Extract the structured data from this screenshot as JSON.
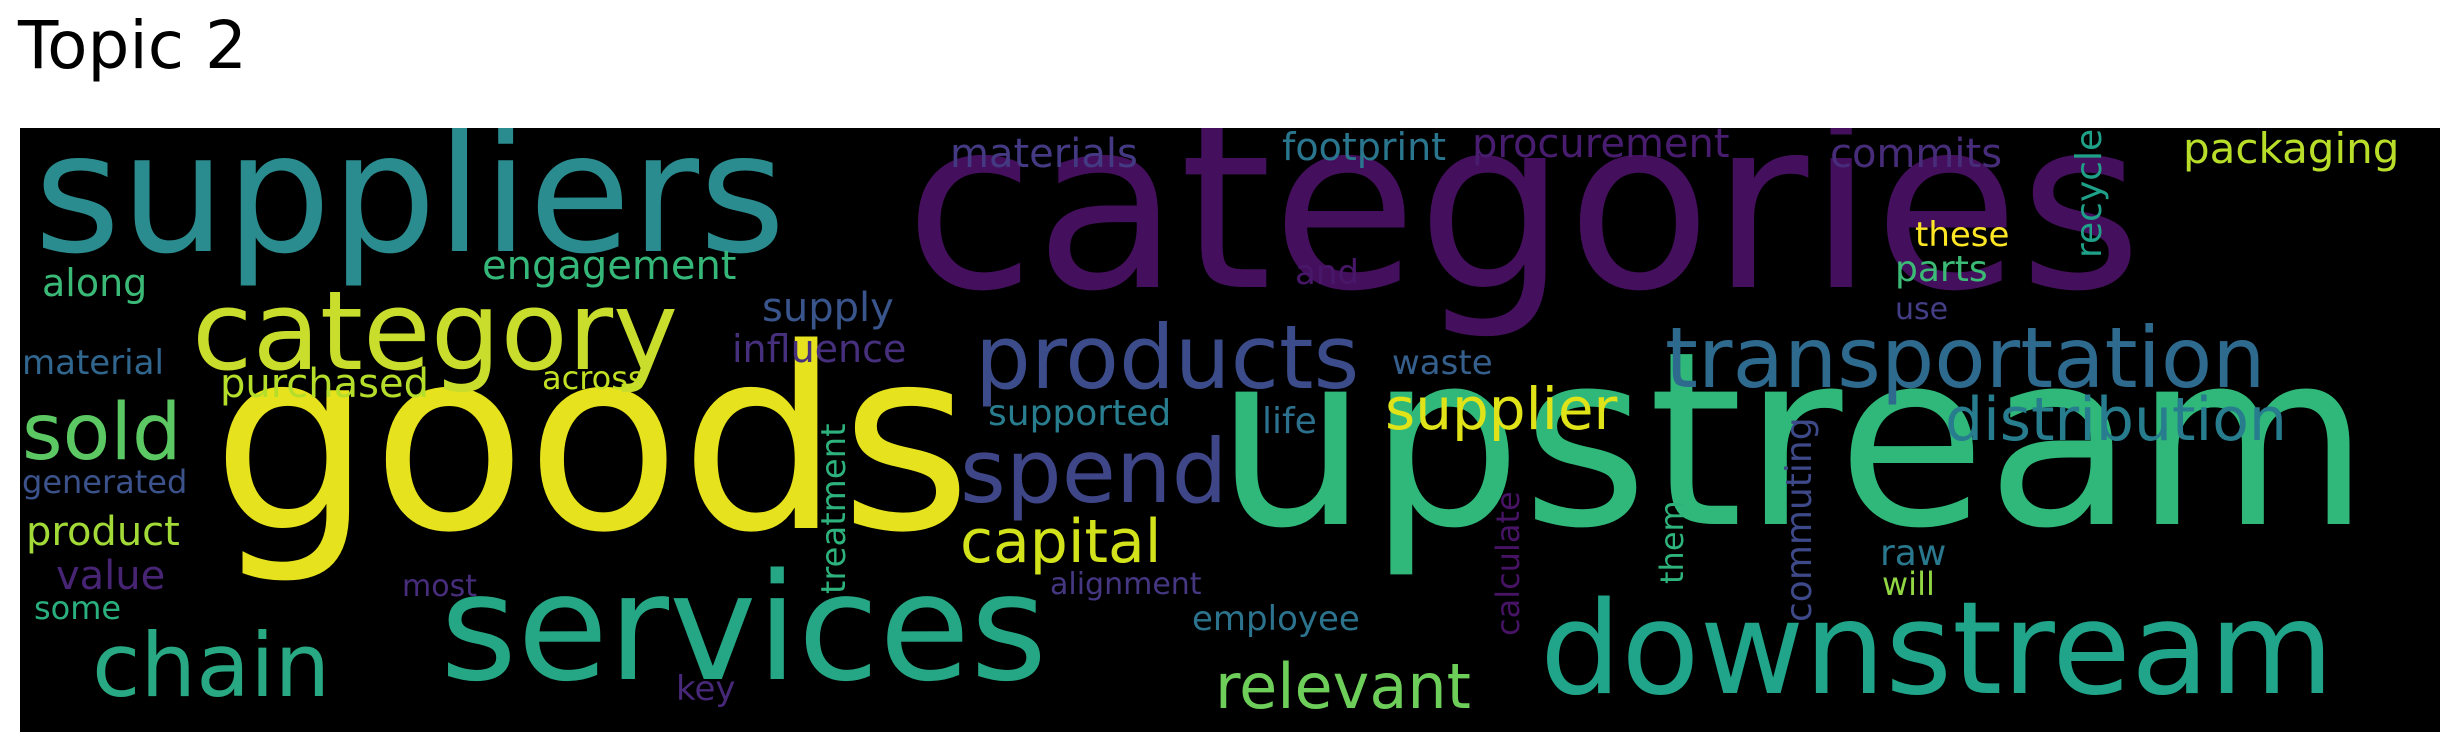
{
  "title": "Topic 2",
  "words": [
    {
      "id": "categories",
      "text": "categories",
      "color": "#440f5c"
    },
    {
      "id": "goods",
      "text": "goods",
      "color": "#e6e21d"
    },
    {
      "id": "upstream",
      "text": "upstream",
      "color": "#2fb87a"
    },
    {
      "id": "suppliers",
      "text": "suppliers",
      "color": "#2a8c8f"
    },
    {
      "id": "services",
      "text": "services",
      "color": "#25a684"
    },
    {
      "id": "downstream",
      "text": "downstream",
      "color": "#20a58a"
    },
    {
      "id": "category",
      "text": "category",
      "color": "#c9dd2d"
    },
    {
      "id": "products",
      "text": "products",
      "color": "#3c4c8a"
    },
    {
      "id": "transportation",
      "text": "transportation",
      "color": "#2e6a8e"
    },
    {
      "id": "spend",
      "text": "spend",
      "color": "#3f4688"
    },
    {
      "id": "distribution",
      "text": "distribution",
      "color": "#277c8e"
    },
    {
      "id": "chain",
      "text": "chain",
      "color": "#28a983"
    },
    {
      "id": "sold",
      "text": "sold",
      "color": "#5cc863"
    },
    {
      "id": "relevant",
      "text": "relevant",
      "color": "#6dce59"
    },
    {
      "id": "capital",
      "text": "capital",
      "color": "#d2e21b"
    },
    {
      "id": "supplier",
      "text": "supplier",
      "color": "#dfe318"
    },
    {
      "id": "purchased",
      "text": "purchased",
      "color": "#b5de2b"
    },
    {
      "id": "engagement",
      "text": "engagement",
      "color": "#35b779"
    },
    {
      "id": "materials",
      "text": "materials",
      "color": "#443a83"
    },
    {
      "id": "footprint",
      "text": "footprint",
      "color": "#2a768e"
    },
    {
      "id": "procurement",
      "text": "procurement",
      "color": "#481d6f"
    },
    {
      "id": "commits",
      "text": "commits",
      "color": "#472c7a"
    },
    {
      "id": "packaging",
      "text": "packaging",
      "color": "#b8de29"
    },
    {
      "id": "these",
      "text": "these",
      "color": "#fde725"
    },
    {
      "id": "parts",
      "text": "parts",
      "color": "#3bbb75"
    },
    {
      "id": "recycled",
      "text": "recycled",
      "color": "#1fa088"
    },
    {
      "id": "use",
      "text": "use",
      "color": "#433e85"
    },
    {
      "id": "along",
      "text": "along",
      "color": "#3aba76"
    },
    {
      "id": "material",
      "text": "material",
      "color": "#31668e"
    },
    {
      "id": "supply",
      "text": "supply",
      "color": "#39558c"
    },
    {
      "id": "influence",
      "text": "influence",
      "color": "#46307e"
    },
    {
      "id": "across",
      "text": "across",
      "color": "#c2df23"
    },
    {
      "id": "and",
      "text": "and",
      "color": "#481769"
    },
    {
      "id": "waste",
      "text": "waste",
      "color": "#355f8d"
    },
    {
      "id": "supported",
      "text": "supported",
      "color": "#287d8e"
    },
    {
      "id": "life",
      "text": "life",
      "color": "#2c728e"
    },
    {
      "id": "generated",
      "text": "generated",
      "color": "#3b528b"
    },
    {
      "id": "product",
      "text": "product",
      "color": "#a2da37"
    },
    {
      "id": "value",
      "text": "value",
      "color": "#482475"
    },
    {
      "id": "some",
      "text": "some",
      "color": "#2ab07f"
    },
    {
      "id": "most",
      "text": "most",
      "color": "#472d7b"
    },
    {
      "id": "alignment",
      "text": "alignment",
      "color": "#453781"
    },
    {
      "id": "employee",
      "text": "employee",
      "color": "#2c738e"
    },
    {
      "id": "key",
      "text": "key",
      "color": "#482878"
    },
    {
      "id": "treatment",
      "text": "treatment",
      "color": "#2db27d"
    },
    {
      "id": "calculate",
      "text": "calculate",
      "color": "#471365"
    },
    {
      "id": "commuting",
      "text": "commuting",
      "color": "#3e4989"
    },
    {
      "id": "them",
      "text": "them",
      "color": "#2eb37c"
    },
    {
      "id": "raw",
      "text": "raw",
      "color": "#2a788e"
    },
    {
      "id": "will",
      "text": "will",
      "color": "#90d743"
    }
  ]
}
